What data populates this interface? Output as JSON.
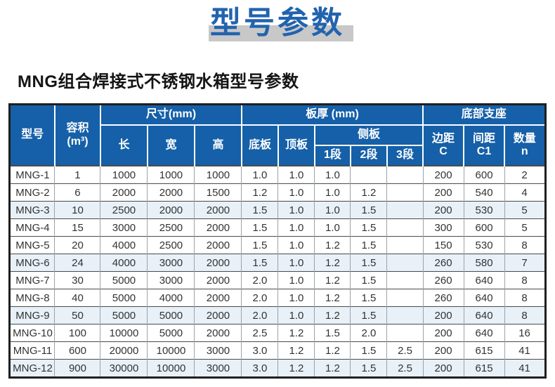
{
  "page": {
    "title": "型号参数",
    "subtitle": "MNG组合焊接式不锈钢水箱型号参数"
  },
  "colors": {
    "title_blue": "#2263ae",
    "title_shadow_gray": "#c8c8c8",
    "header_bg_blue": "#1560a8",
    "header_text": "#ffffff",
    "alt_row_bg": "#e8f1f8",
    "cell_text": "#333333"
  },
  "table": {
    "header": {
      "model": "型号",
      "volume_line1": "容积",
      "volume_line2": "(m³)",
      "dims_group": "尺寸(mm)",
      "length": "长",
      "width": "宽",
      "height": "高",
      "thickness_group": "板厚 (mm)",
      "bottom_plate": "底板",
      "top_plate": "顶板",
      "side_plate_group": "侧板",
      "seg1": "1段",
      "seg2": "2段",
      "seg3": "3段",
      "support_group": "底部支座",
      "edge_line1": "边距",
      "edge_line2": "C",
      "spacing_line1": "间距",
      "spacing_line2": "C1",
      "qty_line1": "数量",
      "qty_line2": "n"
    },
    "rows": [
      [
        "MNG-1",
        "1",
        "1000",
        "1000",
        "1000",
        "1.0",
        "1.0",
        "1.0",
        "",
        "",
        "200",
        "600",
        "2"
      ],
      [
        "MNG-2",
        "6",
        "2000",
        "2000",
        "1500",
        "1.2",
        "1.0",
        "1.0",
        "1.2",
        "",
        "200",
        "540",
        "4"
      ],
      [
        "MNG-3",
        "10",
        "2500",
        "2000",
        "2000",
        "1.5",
        "1.0",
        "1.0",
        "1.5",
        "",
        "200",
        "530",
        "5"
      ],
      [
        "MNG-4",
        "15",
        "3000",
        "2500",
        "2000",
        "1.5",
        "1.0",
        "1.0",
        "1.5",
        "",
        "300",
        "600",
        "5"
      ],
      [
        "MNG-5",
        "20",
        "4000",
        "2500",
        "2000",
        "1.5",
        "1.0",
        "1.2",
        "1.5",
        "",
        "150",
        "530",
        "8"
      ],
      [
        "MNG-6",
        "24",
        "4000",
        "3000",
        "2000",
        "1.5",
        "1.0",
        "1.2",
        "1.5",
        "",
        "260",
        "580",
        "7"
      ],
      [
        "MNG-7",
        "30",
        "5000",
        "3000",
        "2000",
        "2.0",
        "1.0",
        "1.2",
        "1.5",
        "",
        "260",
        "640",
        "8"
      ],
      [
        "MNG-8",
        "40",
        "5000",
        "4000",
        "2000",
        "2.0",
        "1.0",
        "1.2",
        "1.5",
        "",
        "260",
        "640",
        "8"
      ],
      [
        "MNG-9",
        "50",
        "5000",
        "5000",
        "2000",
        "2.0",
        "1.0",
        "1.2",
        "1.5",
        "",
        "200",
        "640",
        "8"
      ],
      [
        "MNG-10",
        "100",
        "10000",
        "5000",
        "2000",
        "2.5",
        "1.2",
        "1.5",
        "2.0",
        "",
        "200",
        "640",
        "16"
      ],
      [
        "MNG-11",
        "600",
        "20000",
        "10000",
        "3000",
        "3.0",
        "1.2",
        "1.2",
        "1.5",
        "2.5",
        "200",
        "615",
        "41"
      ],
      [
        "MNG-12",
        "900",
        "30000",
        "10000",
        "3000",
        "3.0",
        "1.2",
        "1.2",
        "1.5",
        "2.5",
        "200",
        "615",
        "41"
      ]
    ]
  }
}
